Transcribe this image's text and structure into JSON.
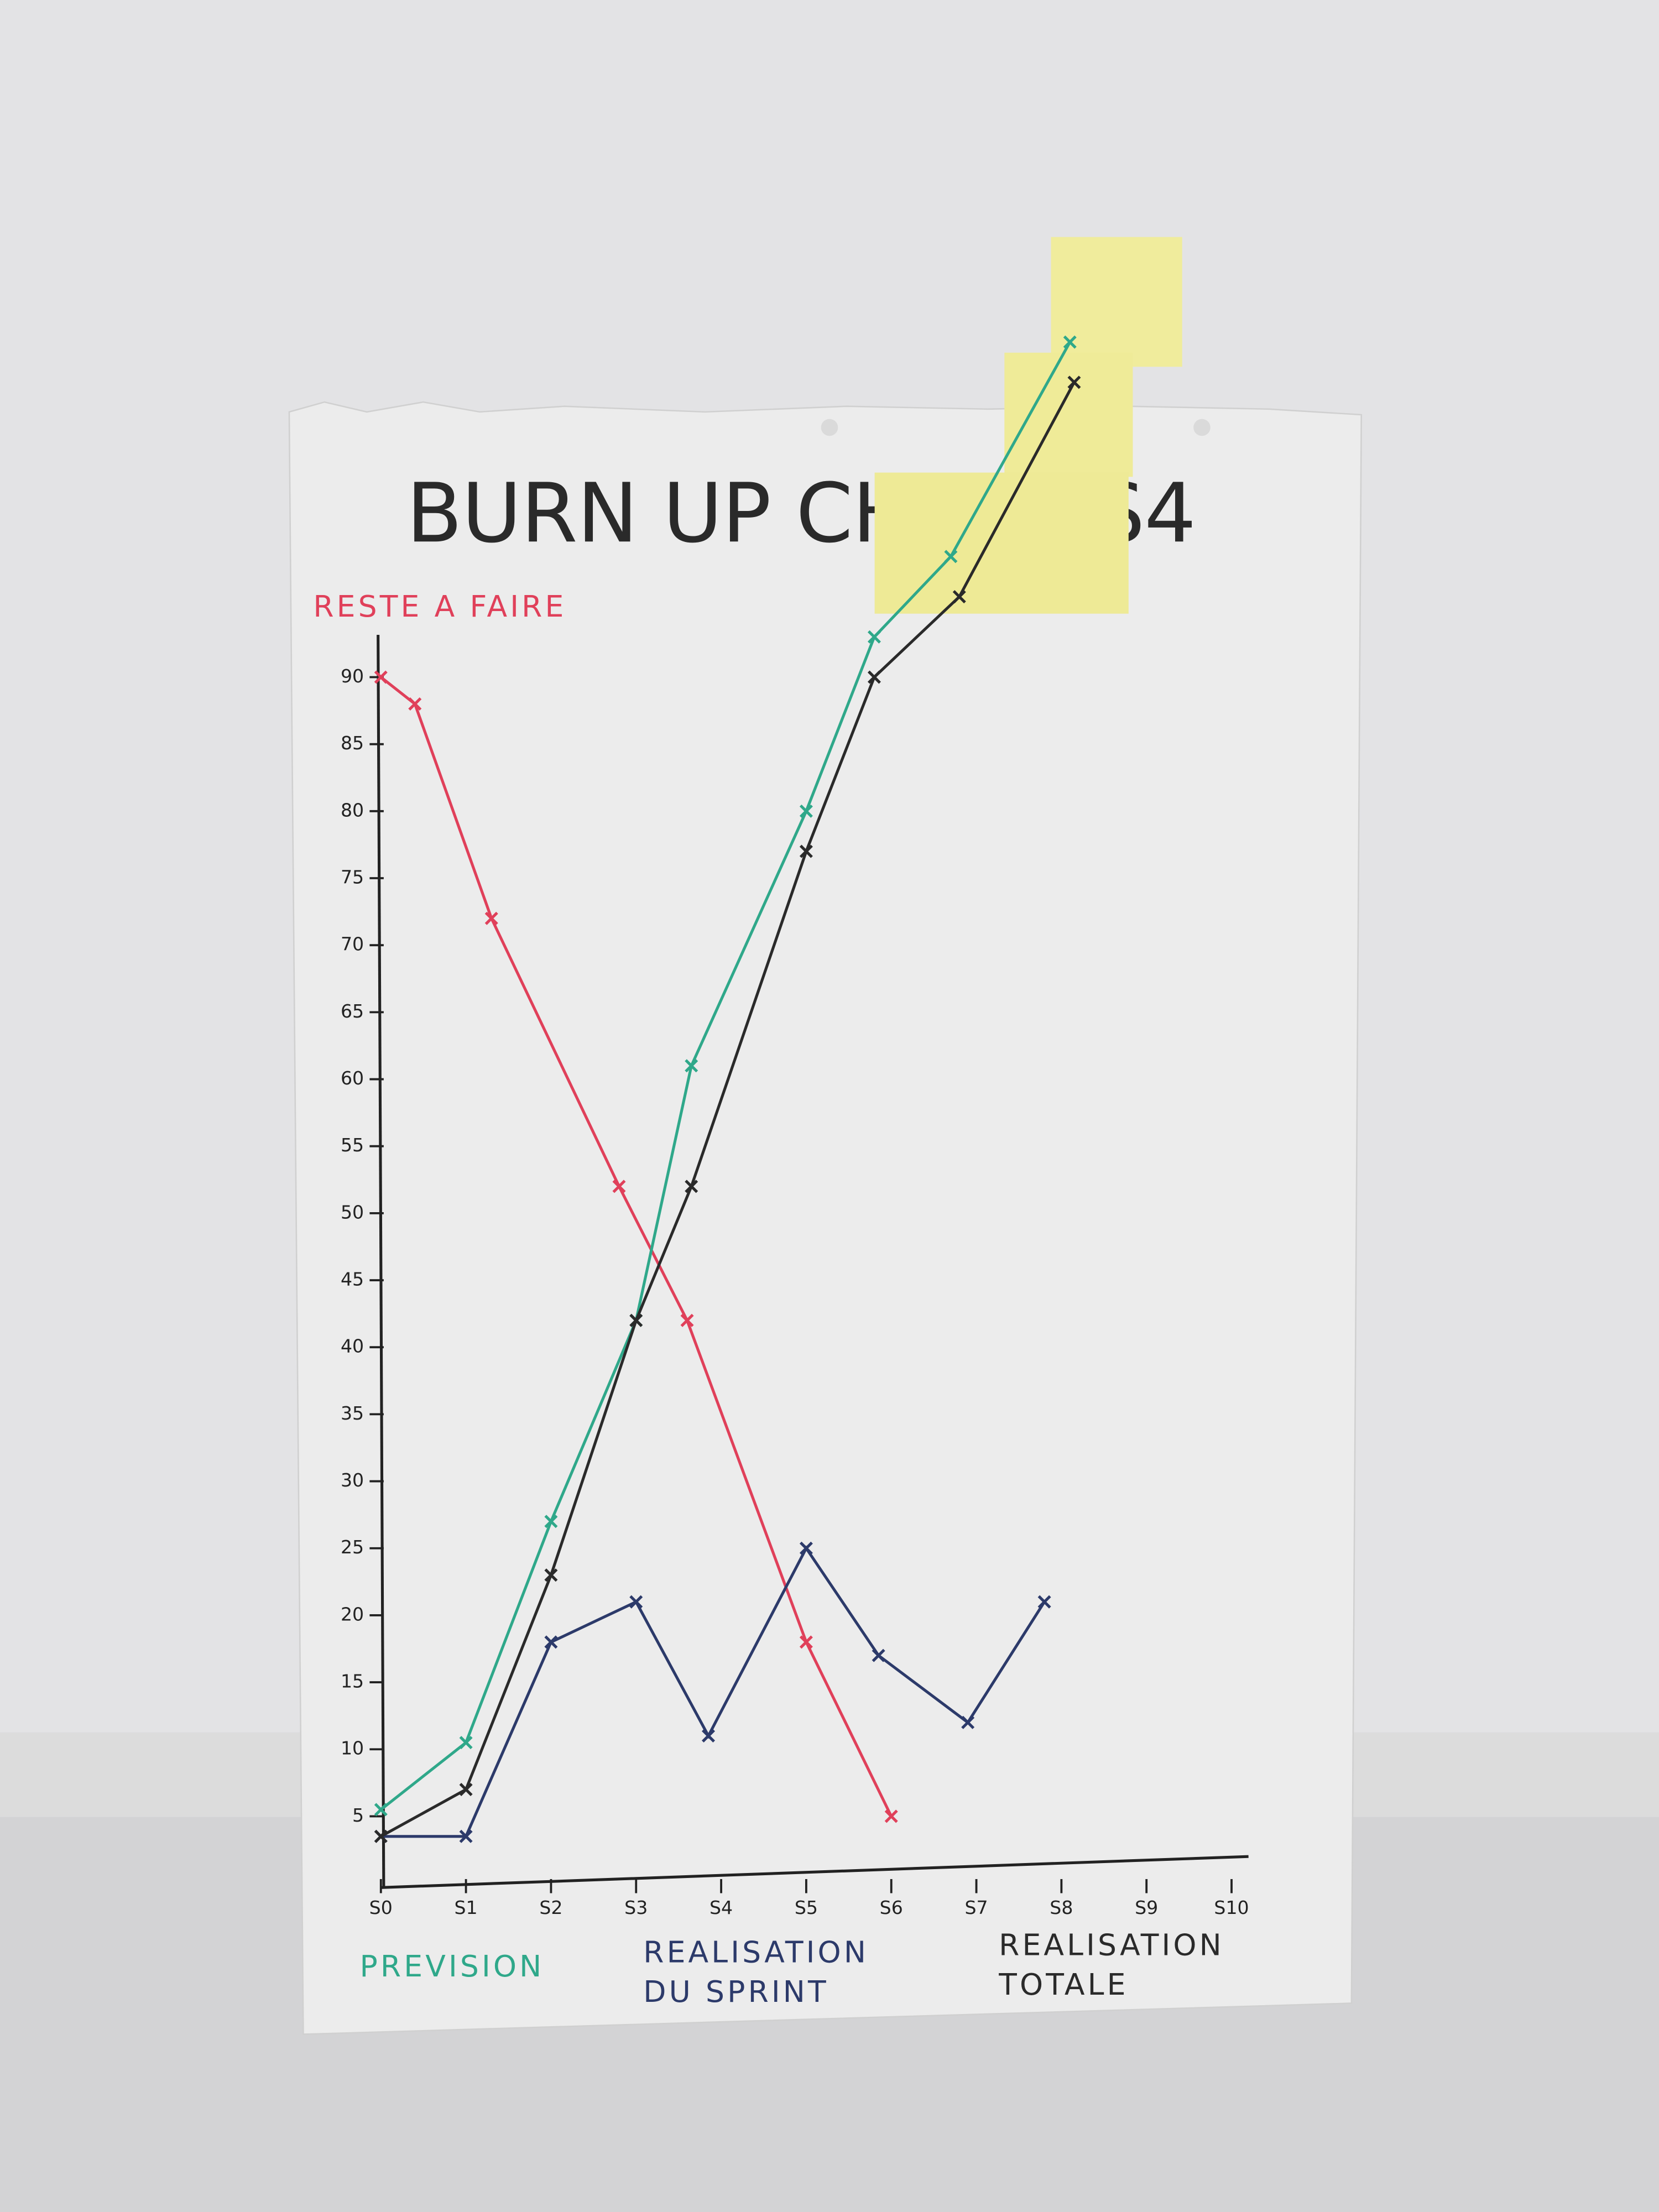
{
  "chart_data": {
    "type": "line",
    "title": "BURN UP CHART S4",
    "xlim": [
      0,
      10
    ],
    "xticks": [
      {
        "value": 0,
        "label": "S0"
      },
      {
        "value": 1,
        "label": "S1"
      },
      {
        "value": 2,
        "label": "S2"
      },
      {
        "value": 3,
        "label": "S3"
      },
      {
        "value": 4,
        "label": "S4"
      },
      {
        "value": 5,
        "label": "S5"
      },
      {
        "value": 6,
        "label": "S6"
      },
      {
        "value": 7,
        "label": "S7"
      },
      {
        "value": 8,
        "label": "S8"
      },
      {
        "value": 9,
        "label": "S9"
      },
      {
        "value": 10,
        "label": "S10"
      }
    ],
    "ylim": [
      0,
      120
    ],
    "yticks": [
      5,
      10,
      15,
      20,
      25,
      30,
      35,
      40,
      45,
      50,
      55,
      60,
      65,
      70,
      75,
      80,
      85,
      90
    ],
    "series": [
      {
        "name": "RESTE A FAIRE",
        "color": "#e0405a",
        "x": [
          0,
          0.4,
          1.3,
          2.8,
          3.6,
          5,
          6
        ],
        "values": [
          90,
          88,
          72,
          52,
          42,
          18,
          5
        ]
      },
      {
        "name": "PREVISION",
        "color": "#2fa88a",
        "x": [
          0,
          1,
          2,
          3,
          3.65,
          5,
          5.8,
          6.7,
          8.1
        ],
        "values": [
          5.5,
          10.5,
          27,
          42,
          61,
          80,
          93,
          99,
          115
        ]
      },
      {
        "name": "REALISATION DU SPRINT",
        "color": "#2c3a6a",
        "x": [
          0,
          1,
          2,
          3,
          3.85,
          5,
          5.85,
          6.9,
          7.8
        ],
        "values": [
          3.5,
          3.5,
          18,
          21,
          11,
          25,
          17,
          12,
          21
        ]
      },
      {
        "name": "REALISATION TOTALE",
        "color": "#2a2a2a",
        "x": [
          0,
          1,
          2,
          3,
          3.65,
          5,
          5.8,
          6.8,
          8.15
        ],
        "values": [
          3.5,
          7,
          23,
          42,
          52,
          77,
          90,
          96,
          112
        ]
      }
    ]
  }
}
